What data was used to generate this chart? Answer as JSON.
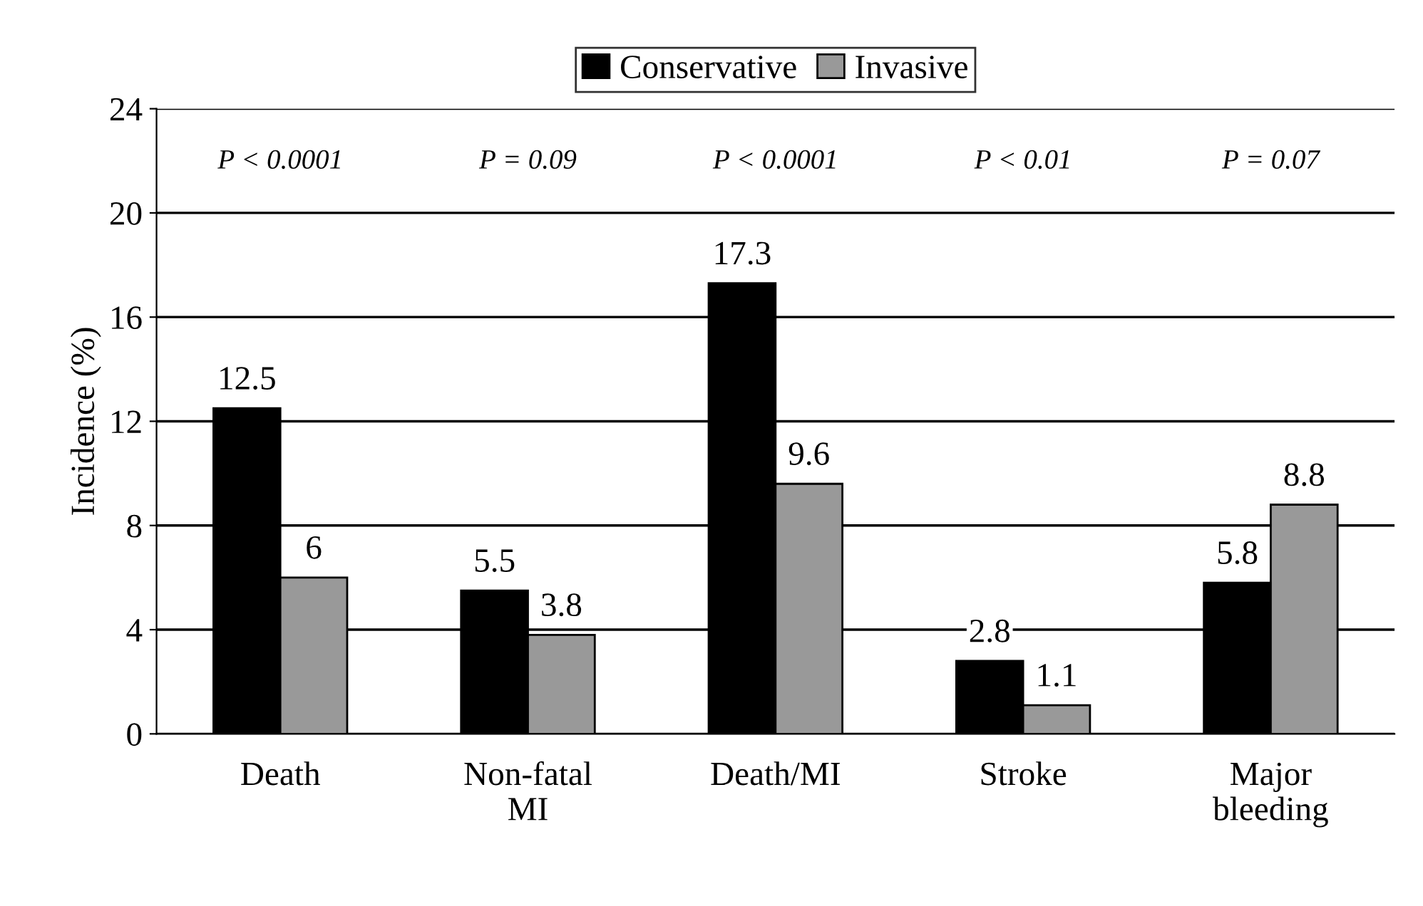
{
  "chart_data": {
    "type": "bar",
    "ylabel": "Incidence (%)",
    "categories": [
      "Death",
      "Non-fatal\nMI",
      "Death/MI",
      "Stroke",
      "Major\nbleeding"
    ],
    "series": [
      {
        "name": "Conservative",
        "color": "#000000",
        "values": [
          12.5,
          5.5,
          17.3,
          2.8,
          5.8
        ]
      },
      {
        "name": "Invasive",
        "color": "#999999",
        "values": [
          6,
          3.8,
          9.6,
          1.1,
          8.8
        ]
      }
    ],
    "annotations": [
      "P < 0.0001",
      "P = 0.09",
      "P < 0.0001",
      "P < 0.01",
      "P = 0.07"
    ],
    "ylim": [
      0,
      24
    ],
    "yticks": [
      0,
      4,
      8,
      12,
      16,
      20,
      24
    ],
    "grid": "y",
    "legend": "top",
    "data_labels": true
  }
}
